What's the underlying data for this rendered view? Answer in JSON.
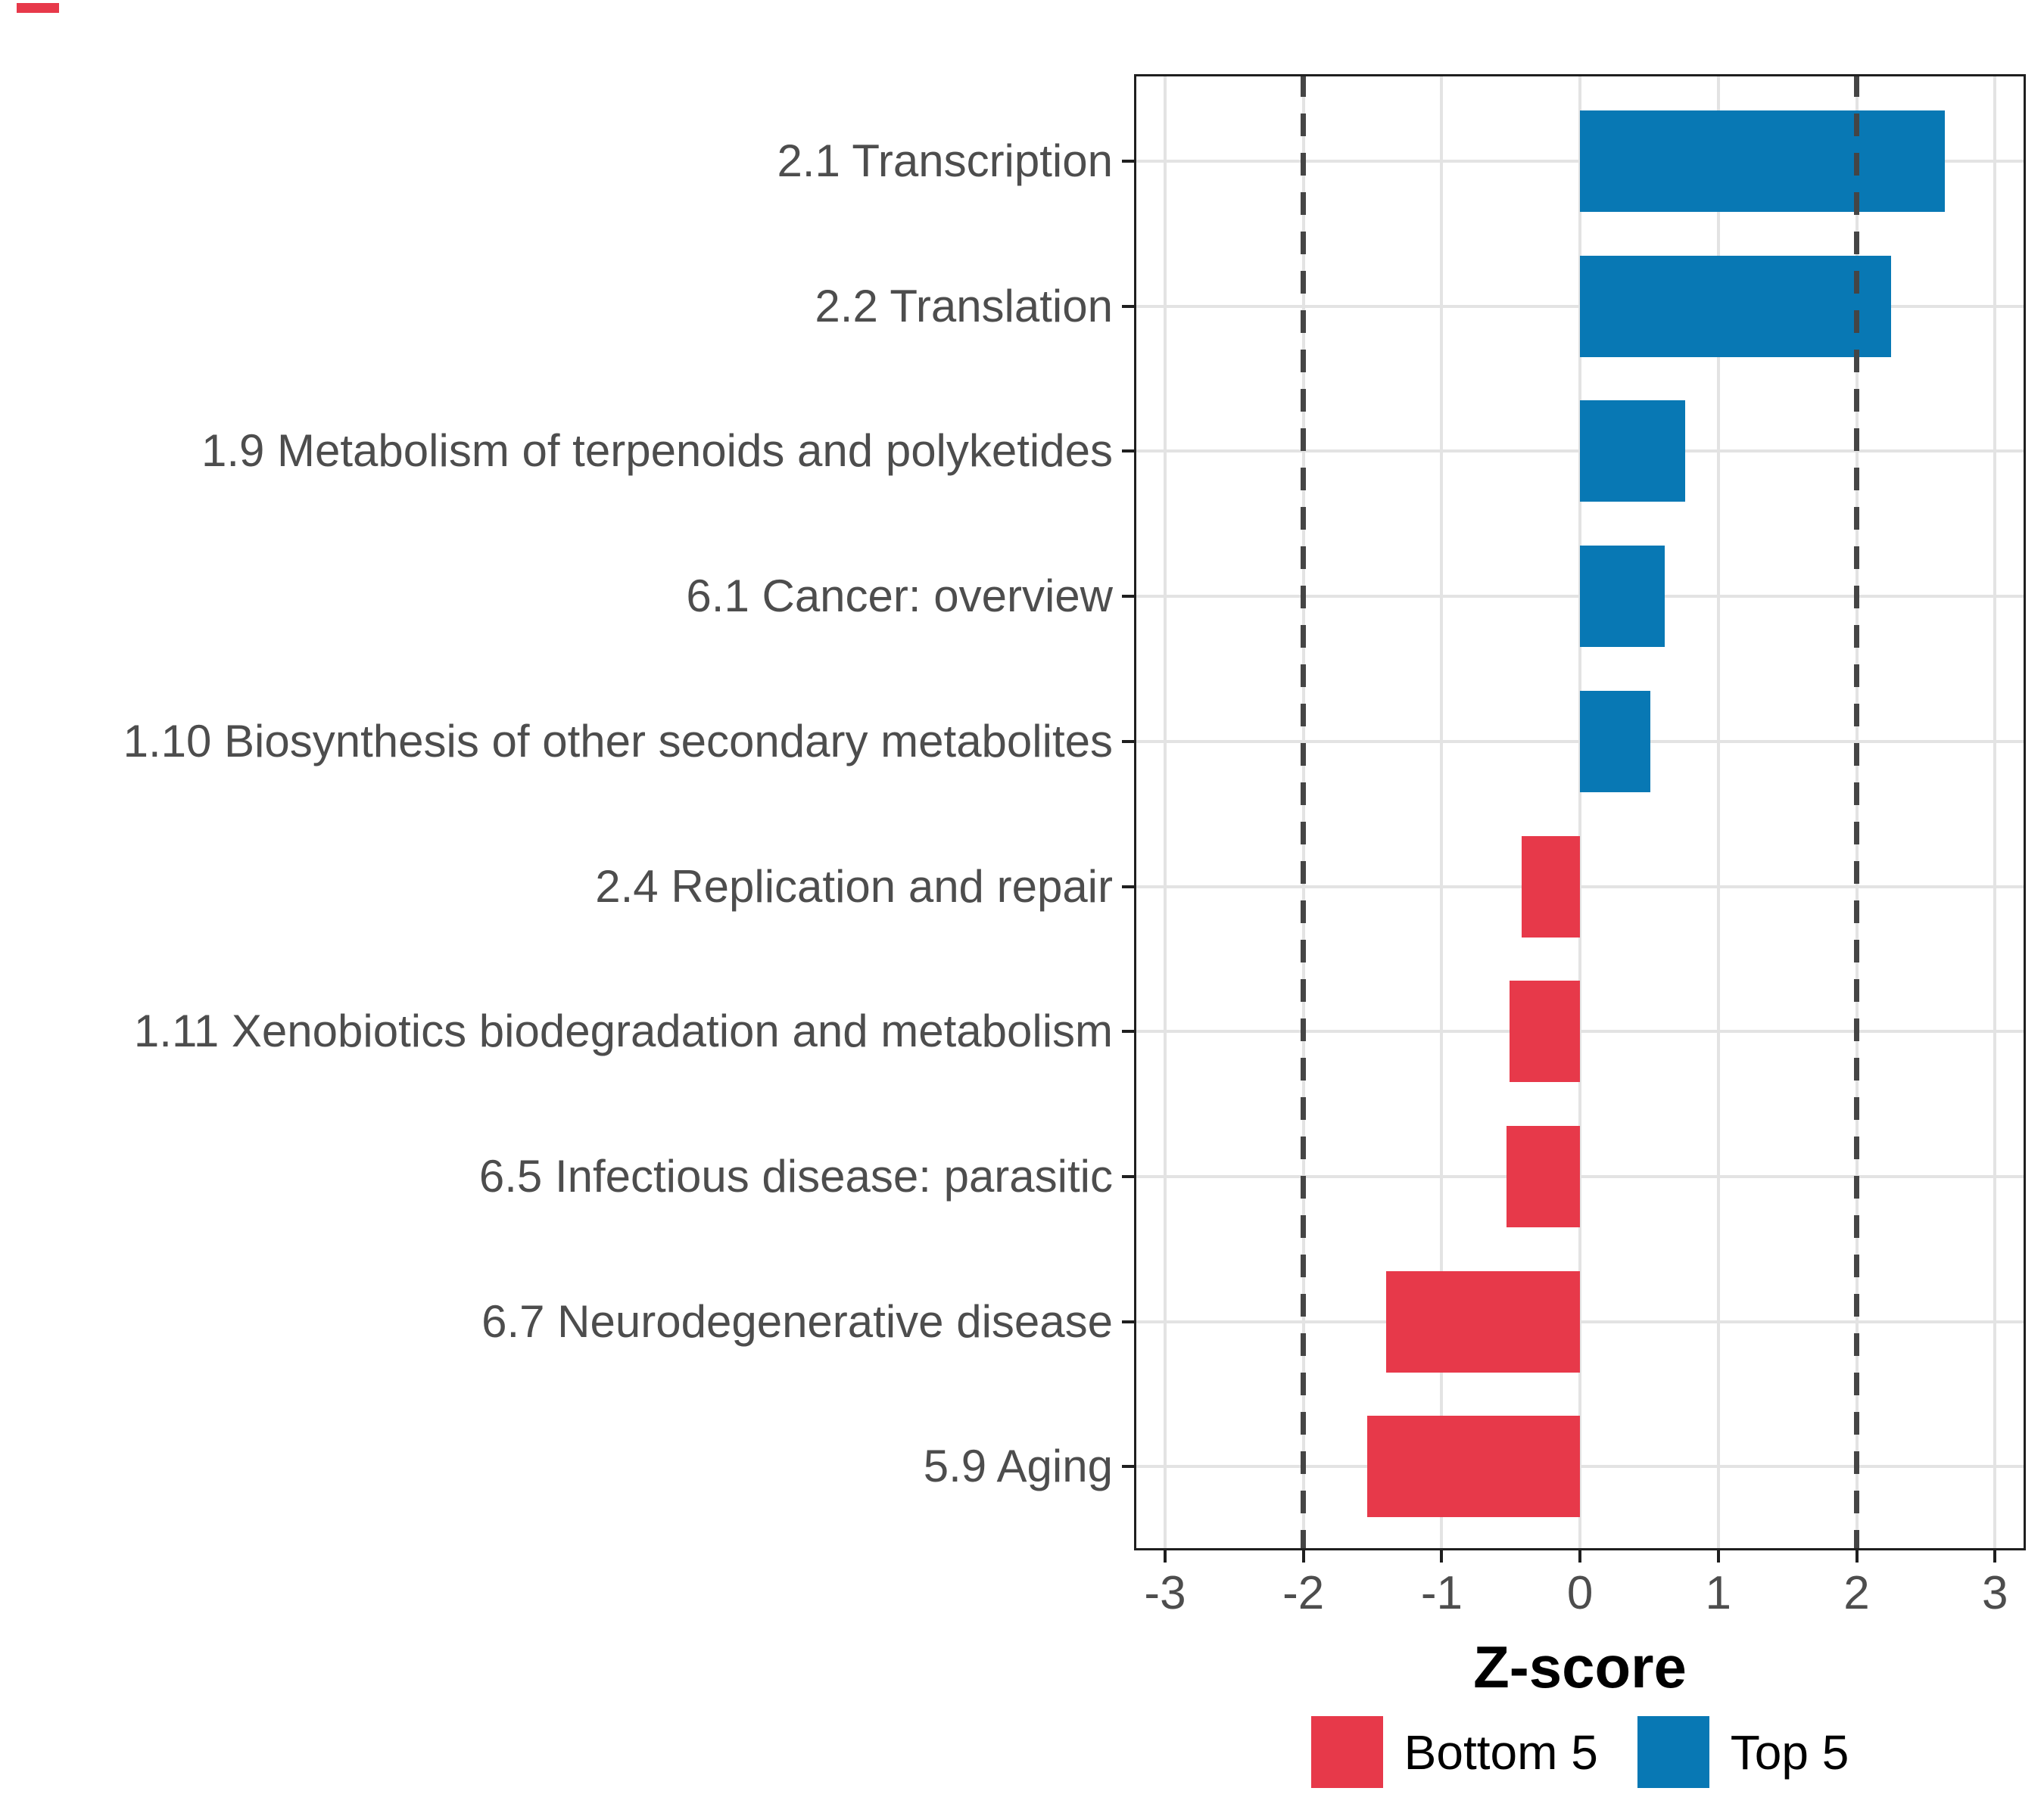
{
  "figure": {
    "background": "#ffffff",
    "corner_mark_color": "#e7394a"
  },
  "chart_data": {
    "type": "bar",
    "orientation": "horizontal",
    "title": "",
    "xlabel": "Z-score",
    "ylabel": "",
    "categories": [
      "2.1 Transcription",
      "2.2 Translation",
      "1.9 Metabolism of terpenoids and polyketides",
      "6.1 Cancer: overview",
      "1.10 Biosynthesis of other secondary metabolites",
      "2.4 Replication and repair",
      "1.11 Xenobiotics biodegradation and metabolism",
      "6.5 Infectious disease: parasitic",
      "6.7 Neurodegenerative disease",
      "5.9 Aging"
    ],
    "series": [
      {
        "name": "Z-score",
        "values": [
          2.64,
          2.25,
          0.76,
          0.61,
          0.51,
          -0.42,
          -0.51,
          -0.53,
          -1.4,
          -1.54
        ]
      }
    ],
    "groups": [
      "Top 5",
      "Top 5",
      "Top 5",
      "Top 5",
      "Top 5",
      "Bottom 5",
      "Bottom 5",
      "Bottom 5",
      "Bottom 5",
      "Bottom 5"
    ],
    "group_colors": {
      "Top 5": "#0878b4",
      "Bottom 5": "#e7394a"
    },
    "x_axis": {
      "label": "Z-score",
      "ticks": [
        -3,
        -2,
        -1,
        0,
        1,
        2,
        3
      ],
      "range": [
        -3.22,
        3.22
      ]
    },
    "reference_lines": {
      "values": [
        -2,
        2
      ],
      "style": "dashed",
      "color": "#454545"
    },
    "grid": {
      "show": true,
      "color": "#e3e3e3"
    },
    "axis_text_color": "#4d4d4d",
    "legend": {
      "position": "bottom",
      "items": [
        {
          "label": "Bottom 5",
          "color": "#e7394a"
        },
        {
          "label": "Top 5",
          "color": "#0878b4"
        }
      ]
    }
  }
}
